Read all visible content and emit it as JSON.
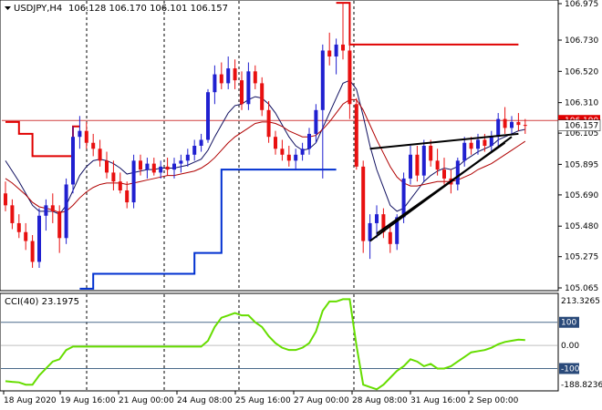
{
  "header": {
    "symbol_label": "USDJPY,H4",
    "ohlc_text": "106.128 106.170 106.101 106.157"
  },
  "indicator": {
    "label": "CCI(40) 23.1975",
    "levels": [
      "213.3265",
      "100",
      "0.00",
      "-100",
      "-188.8236"
    ]
  },
  "price_axis": {
    "ticks": [
      "106.975",
      "106.730",
      "106.520",
      "106.310",
      "106.105",
      "105.895",
      "105.690",
      "105.480",
      "105.275",
      "105.065"
    ],
    "current_price_badge": "106.157",
    "red_line_badge": "106.190"
  },
  "time_axis": {
    "labels": [
      "18 Aug 2020",
      "19 Aug 16:00",
      "21 Aug 00:00",
      "24 Aug 08:00",
      "25 Aug 16:00",
      "27 Aug 00:00",
      "28 Aug 08:00",
      "31 Aug 16:00",
      "2 Sep 00:00"
    ]
  },
  "colors": {
    "bull": "#2020d0",
    "bear": "#e81010",
    "ma_dark": "#101060",
    "ma_red": "#b00000",
    "level_red": "#e00000",
    "level_blue": "#0030d0",
    "cci": "#66dd00",
    "trendline": "#000000",
    "grid_dash": "#000000",
    "h_ref": "#d04040"
  },
  "chart_data": {
    "type": "candlestick",
    "symbol": "USDJPY",
    "timeframe": "H4",
    "candles": [
      {
        "o": 105.7,
        "h": 105.78,
        "l": 105.58,
        "c": 105.62
      },
      {
        "o": 105.62,
        "h": 105.66,
        "l": 105.46,
        "c": 105.5
      },
      {
        "o": 105.5,
        "h": 105.56,
        "l": 105.4,
        "c": 105.44
      },
      {
        "o": 105.44,
        "h": 105.5,
        "l": 105.32,
        "c": 105.38
      },
      {
        "o": 105.38,
        "h": 105.42,
        "l": 105.2,
        "c": 105.24
      },
      {
        "o": 105.24,
        "h": 105.6,
        "l": 105.2,
        "c": 105.55
      },
      {
        "o": 105.55,
        "h": 105.66,
        "l": 105.45,
        "c": 105.62
      },
      {
        "o": 105.62,
        "h": 105.7,
        "l": 105.5,
        "c": 105.58
      },
      {
        "o": 105.58,
        "h": 105.62,
        "l": 105.3,
        "c": 105.4
      },
      {
        "o": 105.4,
        "h": 105.8,
        "l": 105.36,
        "c": 105.76
      },
      {
        "o": 105.76,
        "h": 106.15,
        "l": 105.7,
        "c": 106.08
      },
      {
        "o": 106.08,
        "h": 106.22,
        "l": 106.0,
        "c": 106.12
      },
      {
        "o": 106.12,
        "h": 106.18,
        "l": 106.0,
        "c": 106.04
      },
      {
        "o": 106.04,
        "h": 106.1,
        "l": 105.95,
        "c": 106.0
      },
      {
        "o": 106.0,
        "h": 106.06,
        "l": 105.88,
        "c": 105.92
      },
      {
        "o": 105.92,
        "h": 105.98,
        "l": 105.8,
        "c": 105.84
      },
      {
        "o": 105.84,
        "h": 105.92,
        "l": 105.72,
        "c": 105.78
      },
      {
        "o": 105.78,
        "h": 105.84,
        "l": 105.7,
        "c": 105.72
      },
      {
        "o": 105.72,
        "h": 105.78,
        "l": 105.6,
        "c": 105.64
      },
      {
        "o": 105.64,
        "h": 105.96,
        "l": 105.6,
        "c": 105.92
      },
      {
        "o": 105.92,
        "h": 105.96,
        "l": 105.82,
        "c": 105.86
      },
      {
        "o": 105.86,
        "h": 105.94,
        "l": 105.8,
        "c": 105.9
      },
      {
        "o": 105.9,
        "h": 105.94,
        "l": 105.82,
        "c": 105.84
      },
      {
        "o": 105.84,
        "h": 105.92,
        "l": 105.8,
        "c": 105.88
      },
      {
        "o": 105.88,
        "h": 105.94,
        "l": 105.82,
        "c": 105.86
      },
      {
        "o": 105.86,
        "h": 105.94,
        "l": 105.8,
        "c": 105.9
      },
      {
        "o": 105.9,
        "h": 105.96,
        "l": 105.84,
        "c": 105.92
      },
      {
        "o": 105.92,
        "h": 106.0,
        "l": 105.88,
        "c": 105.96
      },
      {
        "o": 105.96,
        "h": 106.06,
        "l": 105.92,
        "c": 106.02
      },
      {
        "o": 106.02,
        "h": 106.1,
        "l": 105.98,
        "c": 106.06
      },
      {
        "o": 106.06,
        "h": 106.4,
        "l": 106.04,
        "c": 106.38
      },
      {
        "o": 106.38,
        "h": 106.56,
        "l": 106.3,
        "c": 106.5
      },
      {
        "o": 106.5,
        "h": 106.58,
        "l": 106.4,
        "c": 106.44
      },
      {
        "o": 106.44,
        "h": 106.62,
        "l": 106.4,
        "c": 106.54
      },
      {
        "o": 106.54,
        "h": 106.6,
        "l": 106.4,
        "c": 106.46
      },
      {
        "o": 106.46,
        "h": 106.52,
        "l": 106.26,
        "c": 106.3
      },
      {
        "o": 106.3,
        "h": 106.58,
        "l": 106.26,
        "c": 106.52
      },
      {
        "o": 106.52,
        "h": 106.56,
        "l": 106.4,
        "c": 106.44
      },
      {
        "o": 106.44,
        "h": 106.48,
        "l": 106.22,
        "c": 106.26
      },
      {
        "o": 106.26,
        "h": 106.32,
        "l": 106.04,
        "c": 106.08
      },
      {
        "o": 106.08,
        "h": 106.12,
        "l": 105.96,
        "c": 106.0
      },
      {
        "o": 106.0,
        "h": 106.06,
        "l": 105.92,
        "c": 105.96
      },
      {
        "o": 105.96,
        "h": 106.02,
        "l": 105.88,
        "c": 105.92
      },
      {
        "o": 105.92,
        "h": 106.0,
        "l": 105.86,
        "c": 105.96
      },
      {
        "o": 105.96,
        "h": 106.04,
        "l": 105.92,
        "c": 106.0
      },
      {
        "o": 106.0,
        "h": 106.14,
        "l": 105.96,
        "c": 106.1
      },
      {
        "o": 106.1,
        "h": 106.3,
        "l": 106.04,
        "c": 106.26
      },
      {
        "o": 106.26,
        "h": 106.7,
        "l": 105.8,
        "c": 106.66
      },
      {
        "o": 106.66,
        "h": 106.78,
        "l": 106.56,
        "c": 106.62
      },
      {
        "o": 106.62,
        "h": 106.74,
        "l": 106.5,
        "c": 106.7
      },
      {
        "o": 106.7,
        "h": 106.98,
        "l": 106.6,
        "c": 106.66
      },
      {
        "o": 106.66,
        "h": 106.72,
        "l": 106.2,
        "c": 106.3
      },
      {
        "o": 106.3,
        "h": 106.34,
        "l": 105.86,
        "c": 105.88
      },
      {
        "o": 105.88,
        "h": 105.92,
        "l": 105.3,
        "c": 105.38
      },
      {
        "o": 105.38,
        "h": 105.56,
        "l": 105.26,
        "c": 105.5
      },
      {
        "o": 105.5,
        "h": 105.62,
        "l": 105.4,
        "c": 105.56
      },
      {
        "o": 105.56,
        "h": 105.6,
        "l": 105.4,
        "c": 105.44
      },
      {
        "o": 105.44,
        "h": 105.5,
        "l": 105.3,
        "c": 105.36
      },
      {
        "o": 105.36,
        "h": 105.56,
        "l": 105.32,
        "c": 105.54
      },
      {
        "o": 105.54,
        "h": 105.84,
        "l": 105.5,
        "c": 105.8
      },
      {
        "o": 105.8,
        "h": 106.02,
        "l": 105.76,
        "c": 105.96
      },
      {
        "o": 105.96,
        "h": 106.02,
        "l": 105.78,
        "c": 105.82
      },
      {
        "o": 105.82,
        "h": 106.06,
        "l": 105.78,
        "c": 106.02
      },
      {
        "o": 106.02,
        "h": 106.06,
        "l": 105.88,
        "c": 105.92
      },
      {
        "o": 105.92,
        "h": 106.0,
        "l": 105.82,
        "c": 105.86
      },
      {
        "o": 105.86,
        "h": 105.94,
        "l": 105.76,
        "c": 105.8
      },
      {
        "o": 105.8,
        "h": 105.86,
        "l": 105.7,
        "c": 105.76
      },
      {
        "o": 105.76,
        "h": 105.94,
        "l": 105.72,
        "c": 105.92
      },
      {
        "o": 105.92,
        "h": 106.08,
        "l": 105.88,
        "c": 106.04
      },
      {
        "o": 106.04,
        "h": 106.08,
        "l": 105.96,
        "c": 106.0
      },
      {
        "o": 106.0,
        "h": 106.1,
        "l": 105.96,
        "c": 106.06
      },
      {
        "o": 106.06,
        "h": 106.1,
        "l": 105.98,
        "c": 106.02
      },
      {
        "o": 106.02,
        "h": 106.12,
        "l": 105.98,
        "c": 106.08
      },
      {
        "o": 106.08,
        "h": 106.24,
        "l": 106.02,
        "c": 106.2
      },
      {
        "o": 106.2,
        "h": 106.28,
        "l": 106.1,
        "c": 106.14
      },
      {
        "o": 106.14,
        "h": 106.22,
        "l": 106.1,
        "c": 106.18
      },
      {
        "o": 106.18,
        "h": 106.24,
        "l": 106.12,
        "c": 106.16
      },
      {
        "o": 106.16,
        "h": 106.2,
        "l": 106.1,
        "c": 106.157
      }
    ],
    "ma_dark": [
      105.92,
      105.85,
      105.78,
      105.7,
      105.62,
      105.58,
      105.58,
      105.58,
      105.56,
      105.62,
      105.72,
      105.82,
      105.88,
      105.92,
      105.93,
      105.92,
      105.9,
      105.87,
      105.83,
      105.84,
      105.85,
      105.86,
      105.86,
      105.87,
      105.87,
      105.87,
      105.88,
      105.89,
      105.91,
      105.93,
      105.99,
      106.08,
      106.16,
      106.24,
      106.29,
      106.3,
      106.33,
      106.35,
      106.34,
      106.3,
      106.24,
      106.16,
      106.08,
      106.02,
      105.99,
      106.0,
      106.04,
      106.14,
      106.24,
      106.34,
      106.44,
      106.46,
      106.4,
      106.22,
      106.02,
      105.86,
      105.74,
      105.62,
      105.58,
      105.6,
      105.66,
      105.72,
      105.78,
      105.82,
      105.85,
      105.87,
      105.86,
      105.88,
      105.92,
      105.95,
      105.98,
      106.0,
      106.02,
      106.06,
      106.08,
      106.1,
      106.12,
      106.13
    ],
    "ma_red": [
      105.8,
      105.77,
      105.73,
      105.69,
      105.64,
      105.61,
      105.6,
      105.59,
      105.57,
      105.58,
      105.62,
      105.67,
      105.71,
      105.74,
      105.76,
      105.77,
      105.77,
      105.77,
      105.76,
      105.77,
      105.78,
      105.79,
      105.8,
      105.81,
      105.82,
      105.82,
      105.83,
      105.84,
      105.85,
      105.87,
      105.9,
      105.94,
      105.99,
      106.04,
      106.08,
      106.11,
      106.14,
      106.17,
      106.18,
      106.18,
      106.17,
      106.15,
      106.12,
      106.1,
      106.08,
      106.08,
      106.09,
      106.13,
      106.18,
      106.24,
      106.3,
      106.33,
      106.33,
      106.26,
      106.16,
      106.06,
      105.97,
      105.88,
      105.81,
      105.77,
      105.75,
      105.75,
      105.76,
      105.77,
      105.78,
      105.78,
      105.78,
      105.79,
      105.81,
      105.83,
      105.86,
      105.88,
      105.9,
      105.93,
      105.96,
      105.99,
      106.02,
      106.05
    ],
    "level_red_steps": [
      [
        0,
        106.18
      ],
      [
        2,
        106.1
      ],
      [
        4,
        105.95
      ],
      [
        9,
        105.95
      ],
      [
        10,
        106.15
      ],
      [
        11,
        106.15
      ]
    ],
    "level_red_top": [
      [
        49,
        106.98
      ],
      [
        51,
        106.7
      ],
      [
        76,
        106.7
      ]
    ],
    "level_blue_steps": [
      [
        11,
        105.06
      ],
      [
        12,
        105.06
      ],
      [
        13,
        105.16
      ],
      [
        27,
        105.16
      ],
      [
        28,
        105.3
      ],
      [
        32,
        105.86
      ],
      [
        49,
        105.86
      ]
    ],
    "trendlines": [
      {
        "from": [
          54,
          105.38
        ],
        "to": [
          75,
          106.08
        ]
      },
      {
        "from": [
          54,
          106.0
        ],
        "to": [
          76,
          106.1
        ]
      },
      {
        "from": [
          55,
          105.43
        ],
        "to": [
          74,
          106.04
        ]
      }
    ],
    "h_ref_price": 106.19,
    "ylim": [
      105.065,
      106.975
    ],
    "cci": [
      -155,
      -158,
      -160,
      -170,
      -170,
      -130,
      -100,
      -70,
      -60,
      -20,
      -5,
      -5,
      -5,
      -5,
      -5,
      -5,
      -5,
      -5,
      -5,
      -5,
      -5,
      -5,
      -5,
      -5,
      -5,
      -5,
      -5,
      -5,
      -5,
      -5,
      20,
      80,
      120,
      130,
      140,
      130,
      130,
      100,
      80,
      40,
      10,
      -10,
      -20,
      -20,
      -10,
      10,
      60,
      150,
      190,
      190,
      200,
      200,
      0,
      -170,
      -180,
      -190,
      -170,
      -140,
      -110,
      -90,
      -60,
      -70,
      -90,
      -80,
      -100,
      -100,
      -90,
      -70,
      -50,
      -30,
      -25,
      -20,
      -10,
      5,
      15,
      20,
      25,
      23.1975
    ],
    "cci_levels": [
      100,
      0,
      -100
    ],
    "cci_range": [
      -188.8236,
      213.3265
    ]
  }
}
